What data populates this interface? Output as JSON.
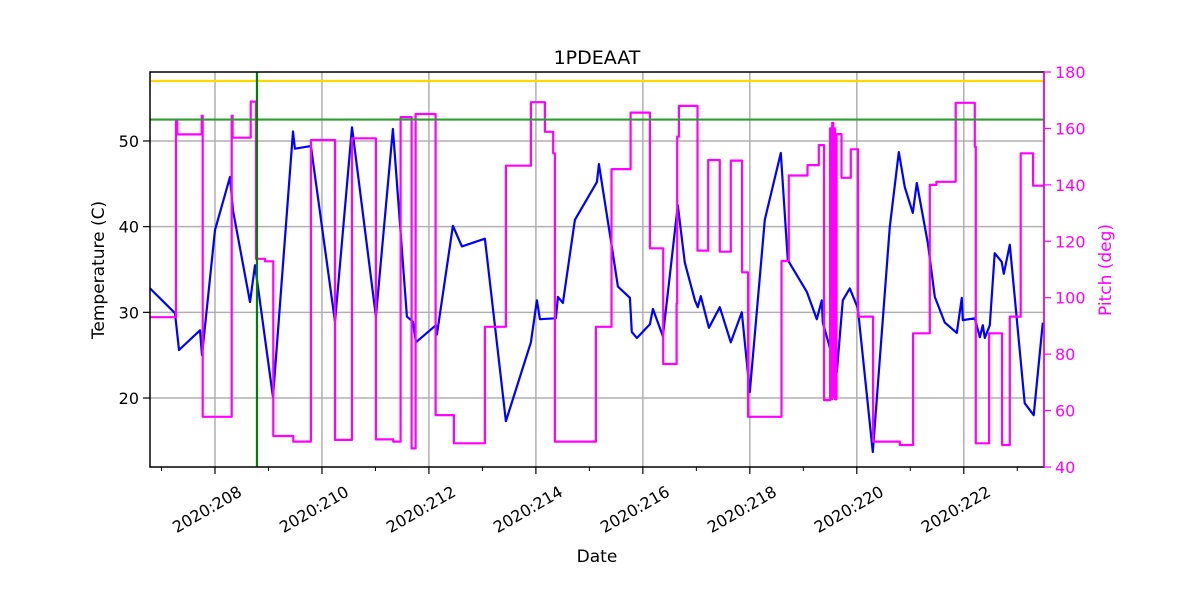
{
  "chart_data": {
    "type": "line",
    "title": "1PDEAAT",
    "xlabel": "Date",
    "ylabel": "Temperature (C)",
    "y2label": "Pitch (deg)",
    "xlim": [
      206.785,
      223.5
    ],
    "ylim": [
      11.95,
      58.05
    ],
    "y2lim": [
      40,
      180
    ],
    "grid": true,
    "xticks": [
      {
        "value": 208,
        "label": "2020:208"
      },
      {
        "value": 210,
        "label": "2020:210"
      },
      {
        "value": 212,
        "label": "2020:212"
      },
      {
        "value": 214,
        "label": "2020:214"
      },
      {
        "value": 216,
        "label": "2020:216"
      },
      {
        "value": 218,
        "label": "2020:218"
      },
      {
        "value": 220,
        "label": "2020:220"
      },
      {
        "value": 222,
        "label": "2020:222"
      }
    ],
    "xminor": [
      207,
      209,
      211,
      213,
      215,
      217,
      219,
      221,
      223
    ],
    "yticks": [
      20,
      30,
      40,
      50
    ],
    "y2ticks": [
      40,
      60,
      80,
      100,
      120,
      140,
      160,
      180
    ],
    "colors": {
      "temperature": "#0000ff",
      "pitch": "#ff00ff",
      "y2axis": "#ff00ff"
    },
    "hlines": [
      {
        "value": 57.0,
        "color": "#ffd700"
      },
      {
        "value": 52.5,
        "color": "#2ca02c"
      }
    ],
    "vlines": [
      {
        "value": 208.785,
        "color": "#008000"
      }
    ],
    "series": [
      {
        "axis": "left",
        "color": "#0000ff",
        "style": "line",
        "points": [
          [
            206.785,
            32.8
          ],
          [
            207.252,
            29.9
          ],
          [
            207.327,
            25.6
          ],
          [
            207.72,
            27.9
          ],
          [
            207.757,
            25.0
          ],
          [
            208.0,
            39.6
          ],
          [
            208.28,
            45.8
          ],
          [
            208.336,
            41.9
          ],
          [
            208.654,
            31.2
          ],
          [
            208.748,
            35.5
          ],
          [
            209.084,
            20.1
          ],
          [
            209.458,
            51.1
          ],
          [
            209.495,
            49.1
          ],
          [
            209.794,
            49.4
          ],
          [
            210.243,
            28.9
          ],
          [
            210.561,
            51.6
          ],
          [
            211.009,
            29.5
          ],
          [
            211.327,
            51.4
          ],
          [
            211.589,
            29.5
          ],
          [
            211.701,
            28.9
          ],
          [
            211.757,
            26.5
          ],
          [
            212.131,
            28.5
          ],
          [
            212.15,
            27.4
          ],
          [
            212.449,
            40.1
          ],
          [
            212.617,
            37.7
          ],
          [
            213.047,
            38.6
          ],
          [
            213.439,
            17.3
          ],
          [
            213.907,
            26.5
          ],
          [
            214.019,
            31.4
          ],
          [
            214.075,
            29.2
          ],
          [
            214.374,
            29.3
          ],
          [
            214.411,
            31.8
          ],
          [
            214.505,
            31.1
          ],
          [
            214.729,
            40.8
          ],
          [
            215.14,
            45.2
          ],
          [
            215.178,
            47.3
          ],
          [
            215.421,
            37.6
          ],
          [
            215.533,
            33.0
          ],
          [
            215.757,
            31.7
          ],
          [
            215.794,
            27.7
          ],
          [
            215.888,
            27.0
          ],
          [
            216.131,
            28.6
          ],
          [
            216.187,
            30.4
          ],
          [
            216.374,
            27.2
          ],
          [
            216.654,
            42.5
          ],
          [
            216.785,
            35.8
          ],
          [
            216.972,
            31.4
          ],
          [
            217.028,
            30.6
          ],
          [
            217.084,
            31.9
          ],
          [
            217.234,
            28.2
          ],
          [
            217.439,
            30.6
          ],
          [
            217.645,
            26.5
          ],
          [
            217.85,
            30.0
          ],
          [
            218.0,
            20.7
          ],
          [
            218.28,
            40.8
          ],
          [
            218.579,
            48.6
          ],
          [
            218.71,
            36.1
          ],
          [
            219.065,
            32.4
          ],
          [
            219.252,
            29.2
          ],
          [
            219.346,
            31.4
          ],
          [
            219.364,
            28.8
          ],
          [
            219.626,
            23.0
          ],
          [
            219.738,
            31.4
          ],
          [
            219.869,
            32.8
          ],
          [
            220.019,
            30.5
          ],
          [
            220.299,
            13.7
          ],
          [
            220.617,
            40.0
          ],
          [
            220.785,
            48.7
          ],
          [
            220.897,
            44.6
          ],
          [
            221.047,
            41.6
          ],
          [
            221.121,
            45.1
          ],
          [
            221.327,
            38.1
          ],
          [
            221.458,
            31.8
          ],
          [
            221.645,
            28.8
          ],
          [
            221.869,
            27.6
          ],
          [
            221.963,
            31.7
          ],
          [
            221.981,
            29.1
          ],
          [
            222.206,
            29.3
          ],
          [
            222.299,
            27.1
          ],
          [
            222.355,
            28.5
          ],
          [
            222.393,
            27.0
          ],
          [
            222.486,
            28.5
          ],
          [
            222.579,
            36.9
          ],
          [
            222.71,
            35.9
          ],
          [
            222.748,
            34.5
          ],
          [
            222.86,
            37.9
          ],
          [
            223.14,
            19.4
          ],
          [
            223.308,
            18.0
          ],
          [
            223.477,
            28.8
          ]
        ]
      },
      {
        "axis": "right",
        "color": "#ff00ff",
        "style": "step",
        "points": [
          [
            206.785,
            93.1
          ],
          [
            207.271,
            162.7
          ],
          [
            207.296,
            157.9
          ],
          [
            207.751,
            164.5
          ],
          [
            207.77,
            57.8
          ],
          [
            208.312,
            164.5
          ],
          [
            208.33,
            156.7
          ],
          [
            208.667,
            169.5
          ],
          [
            208.766,
            113.8
          ],
          [
            208.935,
            112.9
          ],
          [
            209.09,
            51.0
          ],
          [
            209.464,
            49.0
          ],
          [
            209.794,
            155.9
          ],
          [
            210.243,
            49.6
          ],
          [
            210.561,
            156.5
          ],
          [
            211.009,
            49.8
          ],
          [
            211.333,
            49.0
          ],
          [
            211.471,
            164.0
          ],
          [
            211.676,
            46.6
          ],
          [
            211.751,
            165.1
          ],
          [
            212.125,
            58.4
          ],
          [
            212.467,
            48.4
          ],
          [
            213.047,
            89.7
          ],
          [
            213.439,
            146.8
          ],
          [
            213.907,
            169.3
          ],
          [
            214.168,
            158.8
          ],
          [
            214.324,
            151.2
          ],
          [
            214.355,
            49.0
          ],
          [
            215.121,
            89.7
          ],
          [
            215.414,
            145.6
          ],
          [
            215.77,
            165.6
          ],
          [
            216.131,
            117.5
          ],
          [
            216.38,
            76.5
          ],
          [
            216.63,
            98.0
          ],
          [
            216.642,
            157.1
          ],
          [
            216.673,
            168.0
          ],
          [
            217.022,
            116.7
          ],
          [
            217.221,
            148.8
          ],
          [
            217.439,
            116.3
          ],
          [
            217.645,
            148.6
          ],
          [
            217.856,
            109.0
          ],
          [
            217.968,
            57.8
          ],
          [
            218.592,
            113.0
          ],
          [
            218.729,
            143.3
          ],
          [
            219.078,
            147.0
          ],
          [
            219.29,
            154.1
          ],
          [
            219.389,
            63.7
          ],
          [
            219.501,
            160.0
          ],
          [
            219.52,
            64.0
          ],
          [
            219.54,
            162.0
          ],
          [
            219.56,
            65.0
          ],
          [
            219.575,
            160.0
          ],
          [
            219.59,
            64.0
          ],
          [
            219.62,
            158.0
          ],
          [
            219.714,
            142.5
          ],
          [
            219.888,
            152.6
          ],
          [
            220.024,
            93.3
          ],
          [
            220.305,
            49.0
          ],
          [
            220.804,
            47.8
          ],
          [
            221.053,
            87.4
          ],
          [
            221.364,
            140.0
          ],
          [
            221.489,
            141.1
          ],
          [
            221.85,
            169.1
          ],
          [
            222.206,
            153.5
          ],
          [
            222.224,
            48.4
          ],
          [
            222.473,
            87.4
          ],
          [
            222.716,
            47.8
          ],
          [
            222.86,
            93.3
          ],
          [
            223.065,
            151.2
          ],
          [
            223.296,
            139.7
          ],
          [
            223.5,
            139.7
          ]
        ]
      }
    ]
  }
}
